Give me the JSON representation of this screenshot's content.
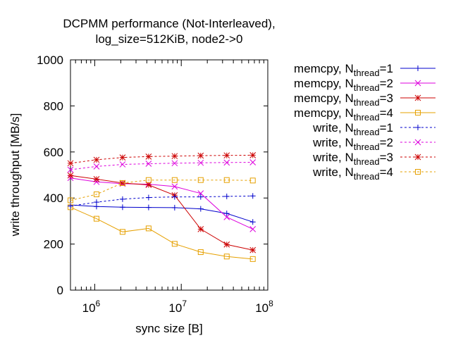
{
  "chart_data": {
    "type": "line",
    "title_line1": "DCPMM performance (Not-Interleaved),",
    "title_line2": "log_size=512KiB, node2->0",
    "xlabel": "sync size [B]",
    "ylabel": "write throughput [MB/s]",
    "xscale": "log",
    "xlim": [
      524288,
      100000000
    ],
    "ylim": [
      0,
      1000
    ],
    "grid": false,
    "legend_position": "right",
    "x_ticks": [
      {
        "value": 1000000,
        "base": "10",
        "exp": "6"
      },
      {
        "value": 10000000,
        "base": "10",
        "exp": "7"
      },
      {
        "value": 100000000,
        "base": "10",
        "exp": "8"
      }
    ],
    "y_ticks": [
      {
        "value": 0,
        "label": "0"
      },
      {
        "value": 200,
        "label": "200"
      },
      {
        "value": 400,
        "label": "400"
      },
      {
        "value": 600,
        "label": "600"
      },
      {
        "value": 800,
        "label": "800"
      },
      {
        "value": 1000,
        "label": "1000"
      }
    ],
    "x": [
      524288,
      1048576,
      2097152,
      4194304,
      8388608,
      16777216,
      33554432,
      67108864
    ],
    "series": [
      {
        "prefix": "memcpy, N",
        "sub": "thread",
        "suffix": "=1",
        "color": "#0000cc",
        "dash": "solid",
        "marker": "plus",
        "values": [
          370,
          363,
          360,
          359,
          358,
          353,
          333,
          296
        ]
      },
      {
        "prefix": "memcpy, N",
        "sub": "thread",
        "suffix": "=2",
        "color": "#dd00dd",
        "dash": "solid",
        "marker": "cross",
        "values": [
          487,
          470,
          462,
          460,
          450,
          420,
          317,
          265
        ]
      },
      {
        "prefix": "memcpy, N",
        "sub": "thread",
        "suffix": "=3",
        "color": "#cc0000",
        "dash": "solid",
        "marker": "star",
        "values": [
          498,
          482,
          465,
          457,
          412,
          265,
          198,
          174
        ]
      },
      {
        "prefix": "memcpy, N",
        "sub": "thread",
        "suffix": "=4",
        "color": "#e6a000",
        "dash": "solid",
        "marker": "square",
        "values": [
          360,
          310,
          253,
          268,
          201,
          165,
          146,
          135
        ]
      },
      {
        "prefix": "write, N",
        "sub": "thread",
        "suffix": "=1",
        "color": "#0000cc",
        "dash": "dashed",
        "marker": "plus",
        "values": [
          365,
          382,
          395,
          402,
          405,
          405,
          407,
          409
        ]
      },
      {
        "prefix": "write, N",
        "sub": "thread",
        "suffix": "=2",
        "color": "#dd00dd",
        "dash": "dashed",
        "marker": "cross",
        "values": [
          523,
          537,
          546,
          549,
          551,
          553,
          554,
          555
        ]
      },
      {
        "prefix": "write, N",
        "sub": "thread",
        "suffix": "=3",
        "color": "#cc0000",
        "dash": "dashed",
        "marker": "star",
        "values": [
          551,
          566,
          576,
          580,
          582,
          584,
          585,
          586
        ]
      },
      {
        "prefix": "write, N",
        "sub": "thread",
        "suffix": "=4",
        "color": "#e6a000",
        "dash": "dashed",
        "marker": "square",
        "values": [
          390,
          416,
          465,
          478,
          478,
          478,
          478,
          476
        ]
      }
    ]
  }
}
